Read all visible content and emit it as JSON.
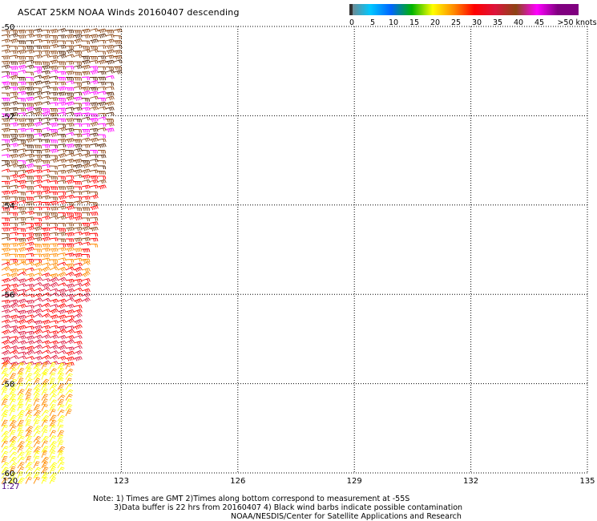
{
  "title": "ASCAT 25KM NOAA Winds 20160407 descending",
  "color_scale": {
    "labels": [
      "0",
      "5",
      "10",
      "15",
      "20",
      "25",
      "30",
      "35",
      "40",
      "45",
      ">50 knots"
    ],
    "colors": [
      "#808080",
      "#00c8ff",
      "#0064ff",
      "#00b400",
      "#ffff00",
      "#ff8c00",
      "#ff0000",
      "#dc143c",
      "#8b4513",
      "#ff00ff",
      "#800080"
    ]
  },
  "map": {
    "lon_labels": [
      "120",
      "123",
      "126",
      "129",
      "132",
      "135"
    ],
    "lat_labels": [
      "-50",
      "-52",
      "-54",
      "-56",
      "-58",
      "-60"
    ],
    "time_label": "1:27",
    "lon_range": [
      120,
      135
    ],
    "lat_range": [
      -50,
      -60
    ]
  },
  "notes": {
    "line1": "Note: 1) Times are GMT 2)Times along bottom correspond to measurement at -55S",
    "line2": "3)Data buffer is 22 hrs from 20160407 4) Black wind barbs indicate possible contamination",
    "line3": "NOAA/NESDIS/Center for Satellite Applications and Research"
  }
}
